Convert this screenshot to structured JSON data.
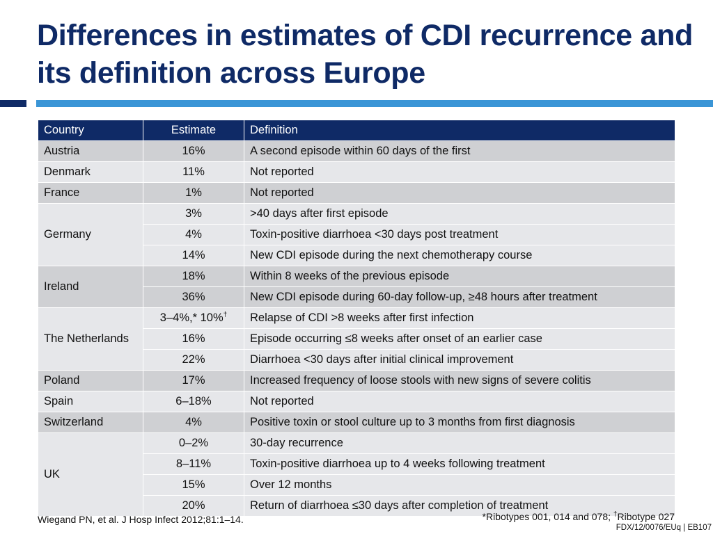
{
  "slide": {
    "title": "Differences in estimates of CDI recurrence and its definition across Europe"
  },
  "table": {
    "headers": [
      "Country",
      "Estimate",
      "Definition"
    ],
    "rows": [
      {
        "country": "Austria",
        "estimate": "16%",
        "definition": "A second episode within 60 days of the first"
      },
      {
        "country": "Denmark",
        "estimate": "11%",
        "definition": "Not reported"
      },
      {
        "country": "France",
        "estimate": "1%",
        "definition": "Not reported"
      },
      {
        "country": "Germany",
        "estimate": "3%",
        "definition": ">40 days after first episode"
      },
      {
        "country": "",
        "estimate": "4%",
        "definition": "Toxin-positive diarrhoea <30 days post treatment"
      },
      {
        "country": "",
        "estimate": "14%",
        "definition": "New CDI episode during the next chemotherapy course"
      },
      {
        "country": "Ireland",
        "estimate": "18%",
        "definition": "Within 8 weeks of the previous episode"
      },
      {
        "country": "",
        "estimate": "36%",
        "definition": "New CDI episode during 60-day follow-up, ≥48 hours after treatment"
      },
      {
        "country": "The Netherlands",
        "estimate": "3–4%,* 10%",
        "estimate_sup": "†",
        "definition": "Relapse of CDI >8 weeks after first infection"
      },
      {
        "country": "",
        "estimate": "16%",
        "definition": "Episode occurring ≤8 weeks after onset of an earlier case"
      },
      {
        "country": "",
        "estimate": "22%",
        "definition": "Diarrhoea <30 days after initial clinical improvement"
      },
      {
        "country": "Poland",
        "estimate": "17%",
        "definition": "Increased frequency of loose stools with new signs of severe colitis"
      },
      {
        "country": "Spain",
        "estimate": "6–18%",
        "definition": "Not reported"
      },
      {
        "country": "Switzerland",
        "estimate": "4%",
        "definition": "Positive toxin or stool culture up to 3 months from first diagnosis"
      },
      {
        "country": "UK",
        "estimate": "0–2%",
        "definition": "30-day recurrence"
      },
      {
        "country": "",
        "estimate": "8–11%",
        "definition": "Toxin-positive diarrhoea up to 4 weeks following treatment"
      },
      {
        "country": "",
        "estimate": "15%",
        "definition": "Over 12 months"
      },
      {
        "country": "",
        "estimate": "20%",
        "definition": "Return of diarrhoea ≤30 days after completion of treatment"
      }
    ]
  },
  "footer": {
    "reference": "Wiegand PN, et al. J Hosp Infect 2012;81:1–14.",
    "note_prefix": "*Ribotypes 001, 014 and 078; ",
    "note_sup": "†",
    "note_suffix": "Ribotype 027",
    "code": "FDX/12/0076/EUq | EB107"
  },
  "colors": {
    "title": "#0f2a66",
    "header_bg": "#0f2a66",
    "accent_rule": "#3a95d6",
    "row_dark": "#cfd0d3",
    "row_light": "#e6e7ea"
  }
}
